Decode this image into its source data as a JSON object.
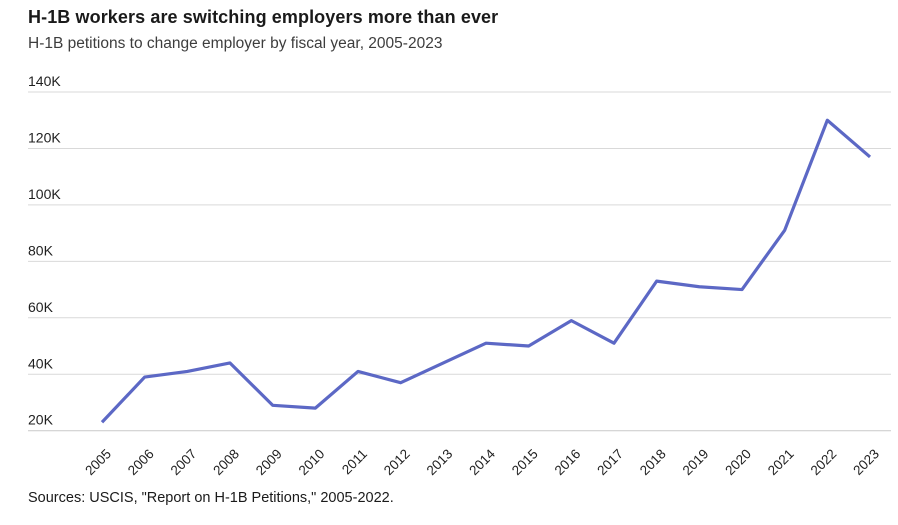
{
  "chart_data": {
    "type": "line",
    "title": "H-1B workers are switching employers more than ever",
    "subtitle": "H-1B petitions to change employer by fiscal year, 2005-2023",
    "source": "Sources: USCIS, \"Report on H-1B Petitions,\" 2005-2022.",
    "categories": [
      "2005",
      "2006",
      "2007",
      "2008",
      "2009",
      "2010",
      "2011",
      "2012",
      "2013",
      "2014",
      "2015",
      "2016",
      "2017",
      "2018",
      "2019",
      "2020",
      "2021",
      "2022",
      "2023"
    ],
    "series": [
      {
        "name": "H-1B petitions to change employer",
        "values": [
          23000,
          39000,
          41000,
          44000,
          29000,
          28000,
          41000,
          37000,
          44000,
          51000,
          50000,
          59000,
          51000,
          73000,
          71000,
          70000,
          91000,
          130000,
          117000
        ]
      }
    ],
    "xlabel": "",
    "ylabel": "",
    "ylim": [
      20000,
      140000
    ],
    "yticks": [
      {
        "value": 20000,
        "label": "20K"
      },
      {
        "value": 40000,
        "label": "40K"
      },
      {
        "value": 60000,
        "label": "60K"
      },
      {
        "value": 80000,
        "label": "80K"
      },
      {
        "value": 100000,
        "label": "100K"
      },
      {
        "value": 120000,
        "label": "120K"
      },
      {
        "value": 140000,
        "label": "140K"
      }
    ],
    "grid": "horizontal",
    "legend": "none",
    "colors": {
      "line": "#5c68c5",
      "gridline": "#d9d9d9",
      "baseline": "#c9c9c9",
      "title_text": "#1a1a1a",
      "subtitle_text": "#3d3d3d",
      "tick_text": "#1f1f1f"
    }
  }
}
